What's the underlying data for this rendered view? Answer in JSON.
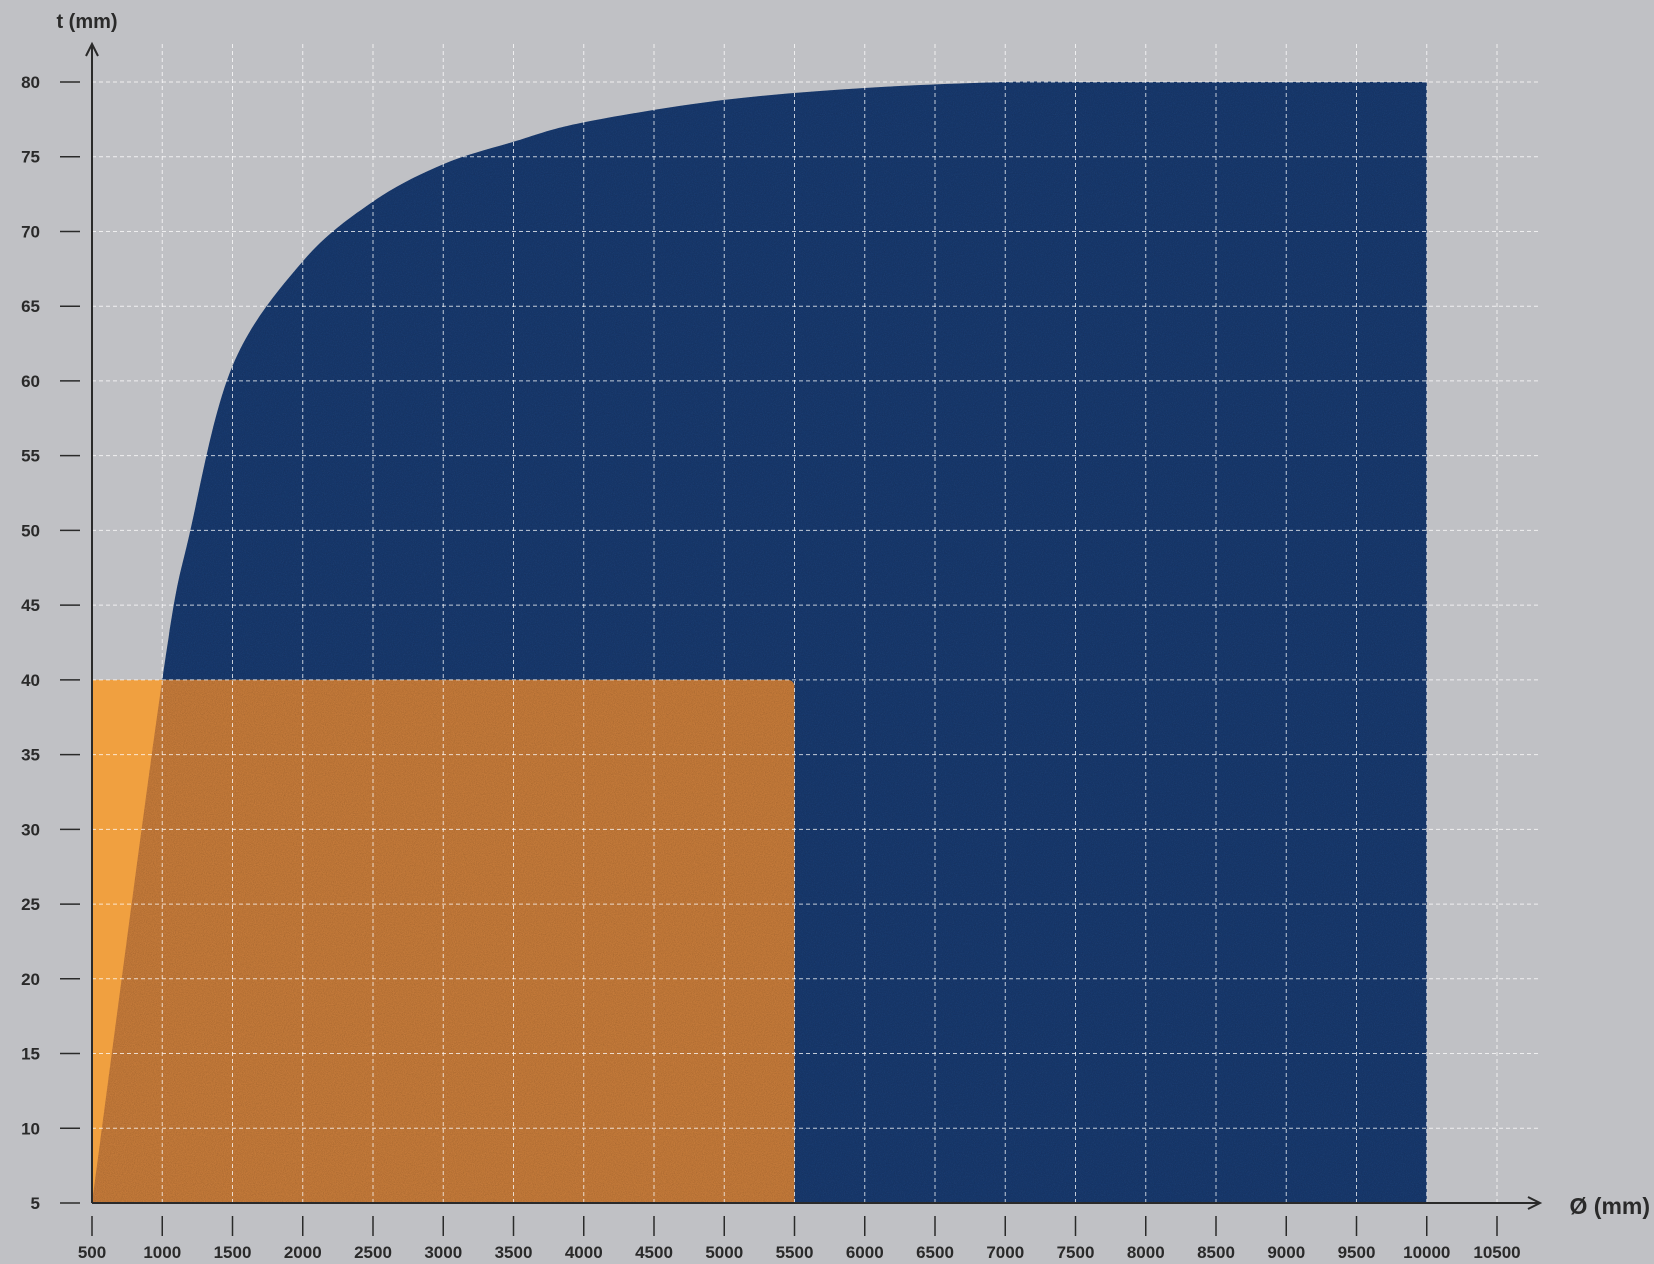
{
  "chart_data": {
    "type": "area",
    "title": "",
    "xlabel": "Ø (mm)",
    "ylabel": "t (mm)",
    "xlim": [
      500,
      10500
    ],
    "ylim": [
      5,
      80
    ],
    "x_ticks": [
      500,
      1000,
      1500,
      2000,
      2500,
      3000,
      3500,
      4000,
      4500,
      5000,
      5500,
      6000,
      6500,
      7000,
      7500,
      8000,
      8500,
      9000,
      9500,
      10000,
      10500
    ],
    "y_ticks": [
      5,
      10,
      15,
      20,
      25,
      30,
      35,
      40,
      45,
      50,
      55,
      60,
      65,
      70,
      75,
      80
    ],
    "grid": true,
    "regions": [
      {
        "shape": "curve-bounded area",
        "color": "#1e3a6e",
        "x": [
          500,
          1000,
          1200,
          1500,
          2000,
          2500,
          3000,
          3500,
          4000,
          5000,
          6000,
          7000,
          7500,
          8000,
          9000,
          10000
        ],
        "y": [
          5,
          40,
          50,
          61,
          68,
          72,
          74.5,
          76,
          77.3,
          78.8,
          79.6,
          80,
          80,
          80,
          80,
          80
        ],
        "x_max": 10000
      },
      {
        "shape": "rectangle",
        "color": "#f0a040",
        "x_range": [
          500,
          5500
        ],
        "y_range": [
          5,
          40
        ]
      }
    ]
  },
  "colors": {
    "background": "#c0c1c5",
    "navy_region": "#1e3a6e",
    "orange_region": "#f0a040",
    "overlap": "#c47a3a",
    "grid": "#ffffff",
    "axis": "#2a2a2a"
  }
}
